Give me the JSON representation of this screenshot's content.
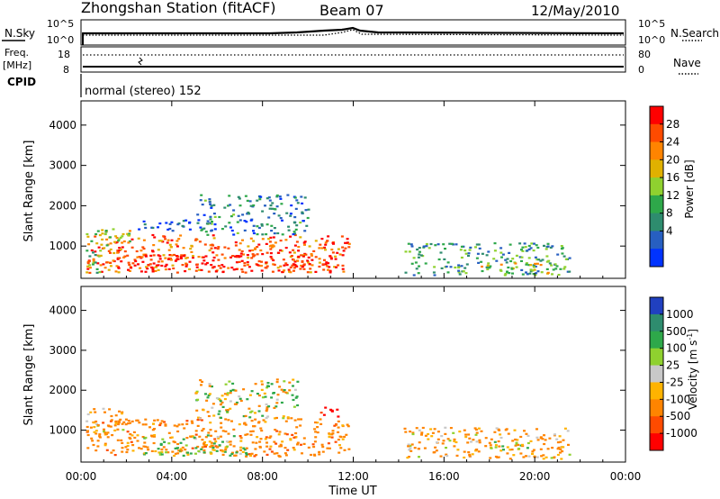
{
  "header": {
    "title": "Zhongshan Station (fitACF)",
    "beam": "Beam 07",
    "date": "12/May/2010"
  },
  "summary": {
    "nsky_label": "N.Sky",
    "nsearch_label": "N.Search",
    "nsky_ticks": [
      "10^5",
      "10^0"
    ],
    "nsearch_ticks": [
      "10^5",
      "10^0"
    ],
    "freq_label": "Freq.",
    "freq_unit": "[MHz]",
    "freq_ticks": [
      "18",
      "8"
    ],
    "nave_label": "Nave",
    "nave_ticks": [
      "80",
      "0"
    ],
    "cpid_label": "CPID",
    "cpid_value": "normal (stereo) 152"
  },
  "chart_data": [
    {
      "type": "heatmap",
      "name": "power",
      "ylabel": "Slant Range [km]",
      "xlabel": "",
      "x_ticks": [
        "00:00",
        "04:00",
        "08:00",
        "12:00",
        "16:00",
        "20:00",
        "00:00"
      ],
      "x_hours": [
        0,
        4,
        8,
        12,
        16,
        20,
        24
      ],
      "xlim": [
        0,
        24
      ],
      "y_ticks": [
        1000,
        2000,
        3000,
        4000
      ],
      "ylim": [
        200,
        4600
      ],
      "colorbar": {
        "label": "Power [dB]",
        "ticks": [
          "28",
          "24",
          "20",
          "16",
          "12",
          "8",
          "4"
        ],
        "colors": [
          "#ff0000",
          "#ff4b00",
          "#ff8400",
          "#e0b100",
          "#8fd12f",
          "#2ea84a",
          "#2e8c6e",
          "#275fc1",
          "#0033ff"
        ]
      },
      "regions": [
        {
          "t": [
            0.2,
            11.8
          ],
          "r": [
            360,
            1300
          ],
          "value": 26
        },
        {
          "t": [
            1.2,
            11.5
          ],
          "r": [
            380,
            820
          ],
          "value": 30
        },
        {
          "t": [
            0.2,
            2.5
          ],
          "r": [
            900,
            1450
          ],
          "value": 18
        },
        {
          "t": [
            5.0,
            10.0
          ],
          "r": [
            1300,
            2300
          ],
          "value": 10
        },
        {
          "t": [
            2.5,
            5.0
          ],
          "r": [
            1400,
            1700
          ],
          "value": 6
        },
        {
          "t": [
            14.2,
            21.5
          ],
          "r": [
            300,
            1100
          ],
          "value": 12
        },
        {
          "t": [
            17.5,
            21.0
          ],
          "r": [
            300,
            600
          ],
          "value": 18
        },
        {
          "t": [
            0.2,
            1.0
          ],
          "r": [
            350,
            900
          ],
          "value": 14
        }
      ]
    },
    {
      "type": "heatmap",
      "name": "velocity",
      "ylabel": "Slant Range [km]",
      "xlabel": "Time UT",
      "x_ticks": [
        "00:00",
        "04:00",
        "08:00",
        "12:00",
        "16:00",
        "20:00",
        "00:00"
      ],
      "x_hours": [
        0,
        4,
        8,
        12,
        16,
        20,
        24
      ],
      "xlim": [
        0,
        24
      ],
      "y_ticks": [
        1000,
        2000,
        3000,
        4000
      ],
      "ylim": [
        200,
        4600
      ],
      "colorbar": {
        "label": "Velocity [m s",
        "label_sup": "-1",
        "label_end": "]",
        "ticks": [
          "1000",
          "500",
          "100",
          "25",
          "-25",
          "-100",
          "-500",
          "-1000"
        ],
        "colors": [
          "#2040c0",
          "#2e8c6e",
          "#2ea84a",
          "#8fd12f",
          "#c8c8c8",
          "#ffb300",
          "#ff8400",
          "#ff4b00",
          "#ff0000"
        ]
      },
      "regions": [
        {
          "t": [
            0.2,
            11.8
          ],
          "r": [
            360,
            1300
          ],
          "value": -300
        },
        {
          "t": [
            2.5,
            7.5
          ],
          "r": [
            380,
            900
          ],
          "value": 80
        },
        {
          "t": [
            5.0,
            9.5
          ],
          "r": [
            1300,
            2300
          ],
          "value": 0
        },
        {
          "t": [
            0.2,
            2.0
          ],
          "r": [
            900,
            1600
          ],
          "value": -150
        },
        {
          "t": [
            14.2,
            21.5
          ],
          "r": [
            300,
            1100
          ],
          "value": -200
        },
        {
          "t": [
            18.0,
            20.0
          ],
          "r": [
            500,
            800
          ],
          "value": 0
        },
        {
          "t": [
            10.5,
            11.5
          ],
          "r": [
            1300,
            1600
          ],
          "value": -1200
        }
      ]
    }
  ]
}
